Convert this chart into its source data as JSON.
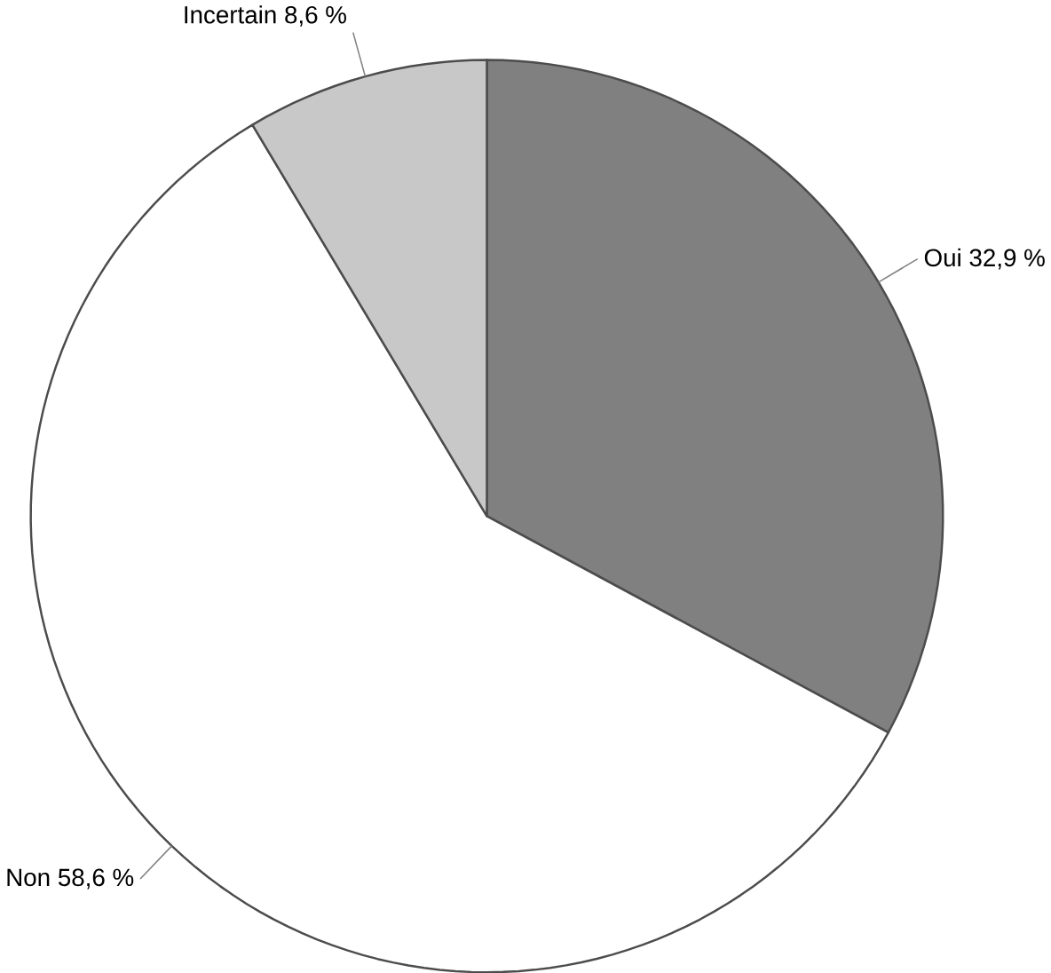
{
  "chart_data": {
    "type": "pie",
    "categories": [
      "Oui",
      "Non",
      "Incertain"
    ],
    "values": [
      32.9,
      58.6,
      8.6
    ],
    "value_labels": [
      "32,9 %",
      "58,6 %",
      "8,6 %"
    ],
    "colors": [
      "#808080",
      "#ffffff",
      "#c8c8c8"
    ]
  }
}
